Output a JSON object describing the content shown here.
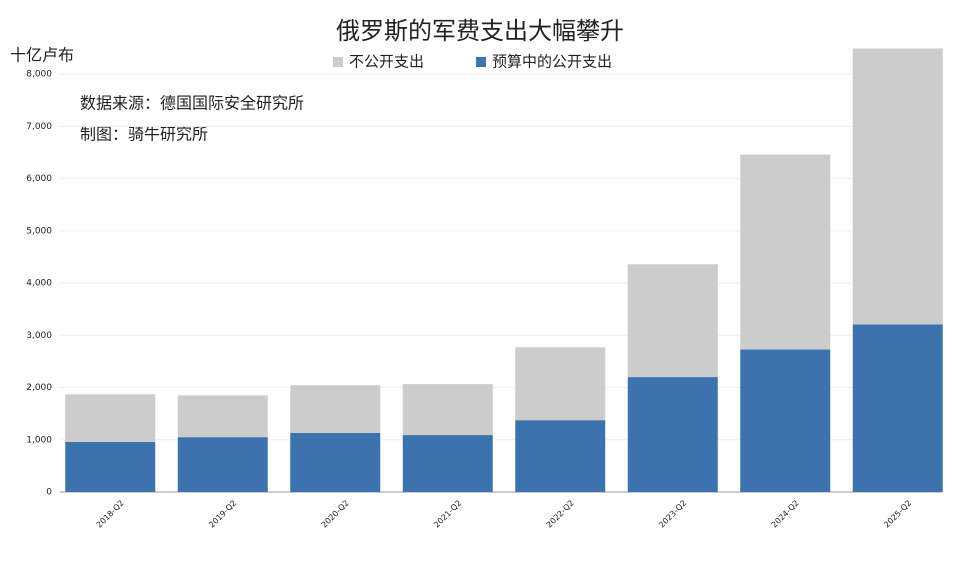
{
  "chart_data": {
    "type": "stacked_bar",
    "title": "俄罗斯的军费支出大幅攀升",
    "y_label": "十亿卢布",
    "annotations": [
      "数据来源：德国国际安全研究所",
      "制图：骑牛研究所"
    ],
    "categories": [
      "2018-Q2",
      "2019-Q2",
      "2020-Q2",
      "2021-Q2",
      "2022-Q2",
      "2023-Q2",
      "2024-Q2",
      "2025-Q2"
    ],
    "series": [
      {
        "name": "不公开支出",
        "color": "#cccccc",
        "values": [
          910,
          800,
          915,
          975,
          1395,
          2160,
          3730,
          5280
        ]
      },
      {
        "name": "预算中的公开支出",
        "color": "#3c73ad",
        "values": [
          960,
          1050,
          1130,
          1090,
          1375,
          2200,
          2730,
          3210
        ]
      }
    ],
    "ylim": [
      0,
      8500
    ],
    "yticks": [
      0,
      {
        "value": 1000,
        "label": "1,000"
      },
      {
        "value": 2000,
        "label": "2,000"
      },
      {
        "value": 3000,
        "label": "3,000"
      },
      {
        "value": 4000,
        "label": "4,000"
      },
      {
        "value": 5000,
        "label": "5,000"
      },
      {
        "value": 6000,
        "label": "6,000"
      },
      {
        "value": 7000,
        "label": "7,000"
      },
      {
        "value": 8000,
        "label": "8,000"
      }
    ],
    "grid": true
  }
}
